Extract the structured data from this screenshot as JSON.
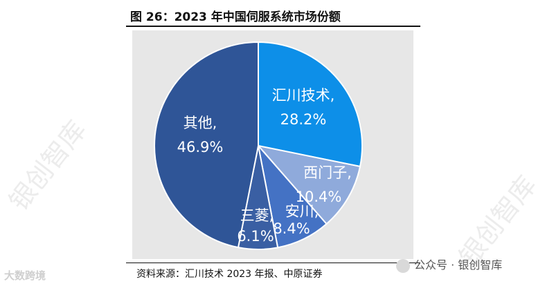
{
  "figure": {
    "title": "图 26：2023 年中国伺服系统市场份额",
    "source": "资料来源：汇川技术 2023 年报、中原证券"
  },
  "watermarks": {
    "diagonal_text": "银创智库",
    "left_bottom": "大数跨境",
    "right_bottom": "公众号 · 银创智库"
  },
  "chart_data": {
    "type": "pie",
    "title": "图 26：2023 年中国伺服系统市场份额",
    "unit": "%",
    "start": "12 o'clock, clockwise",
    "slices": [
      {
        "name": "汇川技术",
        "value": 28.2,
        "label_name": "汇川技术,",
        "label_value": "28.2%",
        "color": "#0d8fe8"
      },
      {
        "name": "西门子",
        "value": 10.4,
        "label_name": "西门子,",
        "label_value": "10.4%",
        "color": "#8faadb"
      },
      {
        "name": "安川",
        "value": 8.4,
        "label_name": "安川,",
        "label_value": "8.4%",
        "color": "#4472c4"
      },
      {
        "name": "三菱",
        "value": 6.1,
        "label_name": "三菱,",
        "label_value": "6.1%",
        "color": "#3a5fa3"
      },
      {
        "name": "其他",
        "value": 46.9,
        "label_name": "其他,",
        "label_value": "46.9%",
        "color": "#2f5597"
      }
    ]
  }
}
